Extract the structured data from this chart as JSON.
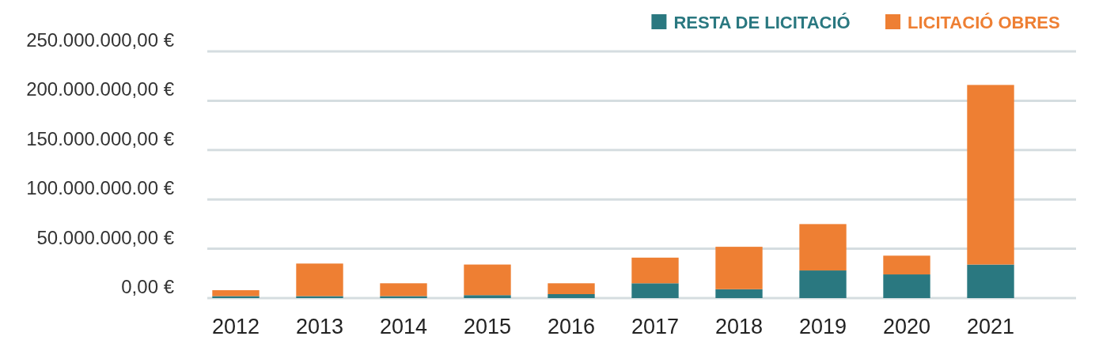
{
  "chart_data": {
    "type": "bar",
    "stacked": true,
    "categories": [
      "2012",
      "2013",
      "2014",
      "2015",
      "2016",
      "2017",
      "2018",
      "2019",
      "2020",
      "2021"
    ],
    "series": [
      {
        "name": "RESTA DE LICITACIÓ",
        "color": "#2a7880",
        "values": [
          2000000,
          2000000,
          2000000,
          3000000,
          4000000,
          15000000,
          9000000,
          28000000,
          24000000,
          34000000
        ]
      },
      {
        "name": "LICITACIÓ OBRES",
        "color": "#ee7f33",
        "values": [
          6000000,
          33000000,
          13000000,
          31000000,
          11000000,
          26000000,
          43000000,
          47000000,
          19000000,
          182000000
        ]
      }
    ],
    "ylim": [
      0,
      250000000
    ],
    "yticks": [
      {
        "value": 0,
        "label": "0,00 €"
      },
      {
        "value": 50000000,
        "label": "50.000.000,00 €"
      },
      {
        "value": 100000000,
        "label": "100.000.000.00 €"
      },
      {
        "value": 150000000,
        "label": "150.000.000,00 €"
      },
      {
        "value": 200000000,
        "label": "200.000.000,00 €"
      },
      {
        "value": 250000000,
        "label": "250.000.000,00 €"
      }
    ],
    "grid": "y",
    "legend": "top right"
  }
}
